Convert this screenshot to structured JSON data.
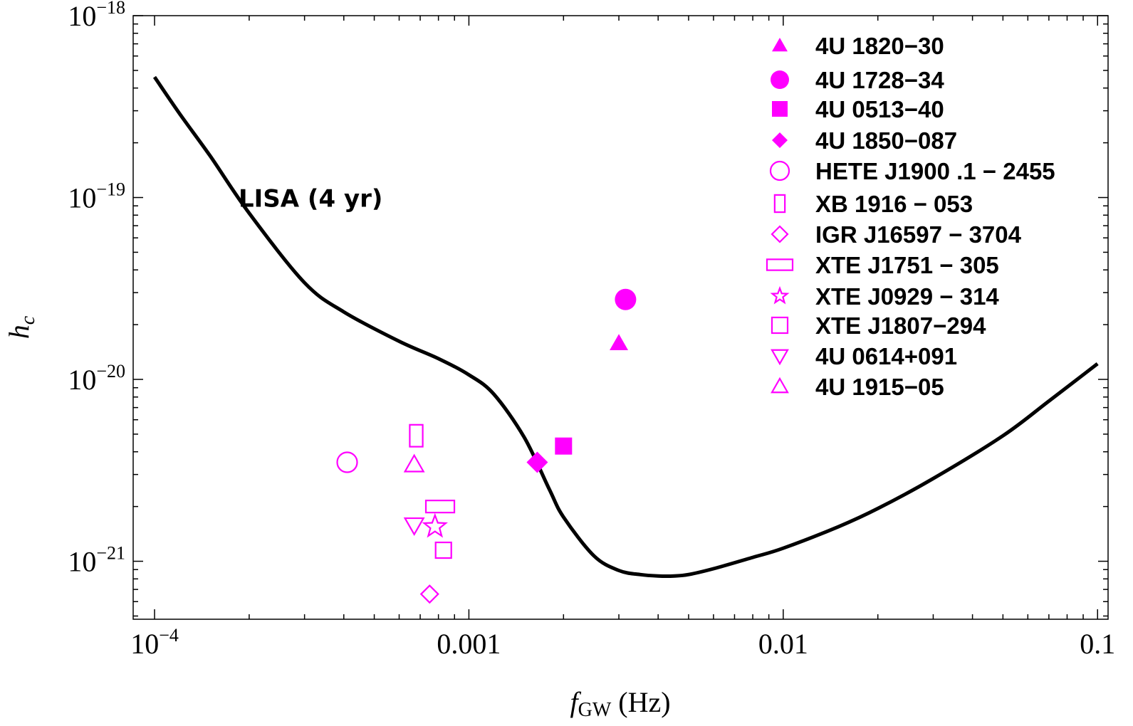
{
  "chart_data": {
    "type": "scatter",
    "title": "",
    "xlabel": {
      "base": "f",
      "sub": "GW",
      "unit": " (Hz)"
    },
    "ylabel": {
      "base": "h",
      "sub": "c"
    },
    "xscale": "log",
    "yscale": "log",
    "xlim": [
      8.55e-05,
      0.108
    ],
    "ylim": [
      4.8e-22,
      1e-18
    ],
    "x_ticks": [
      {
        "value": 0.0001,
        "label": "10",
        "exp": "−4"
      },
      {
        "value": 0.001,
        "label": "0.001",
        "exp": ""
      },
      {
        "value": 0.01,
        "label": "0.01",
        "exp": ""
      },
      {
        "value": 0.1,
        "label": "0.1",
        "exp": ""
      }
    ],
    "y_ticks": [
      {
        "value": 1e-18,
        "label": "10",
        "exp": "−18"
      },
      {
        "value": 1e-19,
        "label": "10",
        "exp": "−19"
      },
      {
        "value": 1e-20,
        "label": "10",
        "exp": "−20"
      },
      {
        "value": 1e-21,
        "label": "10",
        "exp": "−21"
      }
    ],
    "curve": {
      "name": "LISA (4 yr)",
      "color": "#000000",
      "x": [
        0.0001,
        0.00012,
        0.00015,
        0.0002,
        0.0003,
        0.0004,
        0.0006,
        0.0008,
        0.001,
        0.0012,
        0.0015,
        0.0018,
        0.002,
        0.0025,
        0.003,
        0.0035,
        0.004,
        0.0045,
        0.005,
        0.006,
        0.008,
        0.01,
        0.015,
        0.02,
        0.03,
        0.05,
        0.07,
        0.1
      ],
      "y": [
        4.6e-19,
        2.9e-19,
        1.7e-19,
        8.2e-20,
        3.4e-20,
        2.35e-20,
        1.62e-20,
        1.3e-20,
        1.06e-20,
        8.3e-21,
        4.8e-21,
        2.5e-21,
        1.75e-21,
        1.07e-21,
        8.9e-22,
        8.45e-22,
        8.3e-22,
        8.3e-22,
        8.45e-22,
        9.1e-22,
        1.05e-21,
        1.18e-21,
        1.55e-21,
        1.95e-21,
        2.85e-21,
        4.9e-21,
        7.6e-21,
        1.22e-20
      ]
    },
    "annotation": {
      "text": "LISA (4 yr)",
      "x": 0.000185,
      "y": 8.9e-20
    },
    "series": [
      {
        "name": "4U 1820−30",
        "marker": "triangle-up",
        "filled": true,
        "size": 13,
        "x": 0.003,
        "y": 1.58e-20
      },
      {
        "name": "4U 1728−34",
        "marker": "circle",
        "filled": true,
        "size": 15,
        "x": 0.00315,
        "y": 2.75e-20
      },
      {
        "name": "4U 0513−40",
        "marker": "square",
        "filled": true,
        "size": 12,
        "x": 0.002,
        "y": 4.3e-21
      },
      {
        "name": "4U 1850−087",
        "marker": "diamond",
        "filled": true,
        "size": 15,
        "x": 0.00165,
        "y": 3.5e-21
      },
      {
        "name": "HETE J1900 .1 − 2455",
        "marker": "circle",
        "filled": false,
        "size": 14,
        "x": 0.00041,
        "y": 3.5e-21
      },
      {
        "name": "XB 1916 − 053",
        "marker": "rect-tall",
        "filled": false,
        "size": 14,
        "x": 0.00068,
        "y": 4.9e-21
      },
      {
        "name": "IGR J16597 − 3704",
        "marker": "diamond",
        "filled": false,
        "size": 12,
        "x": 0.00075,
        "y": 6.6e-22
      },
      {
        "name": "XTE J1751 − 305",
        "marker": "rect-wide",
        "filled": false,
        "size": 10,
        "x": 0.00081,
        "y": 2e-21
      },
      {
        "name": "XTE J0929 − 314",
        "marker": "star",
        "filled": false,
        "size": 16,
        "x": 0.00078,
        "y": 1.55e-21
      },
      {
        "name": "XTE J1807−294",
        "marker": "square",
        "filled": false,
        "size": 11,
        "x": 0.00083,
        "y": 1.15e-21
      },
      {
        "name": "4U 0614+091",
        "marker": "triangle-down",
        "filled": false,
        "size": 13,
        "x": 0.00067,
        "y": 1.58e-21
      },
      {
        "name": "4U 1915−05",
        "marker": "triangle-up",
        "filled": false,
        "size": 13,
        "x": 0.00067,
        "y": 3.4e-21
      }
    ],
    "marker_color": "#ff00ff",
    "legend": "top-right",
    "grid": false
  }
}
